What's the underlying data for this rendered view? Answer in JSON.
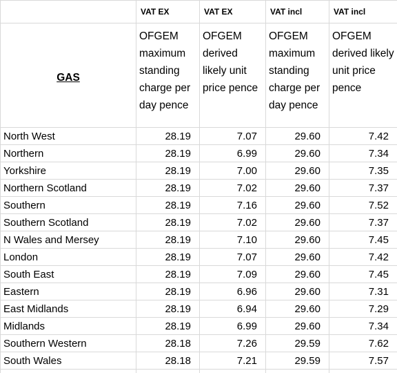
{
  "corner": "GAS",
  "columns": [
    {
      "vat": "VAT EX",
      "heading": "OFGEM maximum standing charge per day pence"
    },
    {
      "vat": "VAT EX",
      "heading": "OFGEM derived likely unit price pence"
    },
    {
      "vat": "VAT incl",
      "heading": "OFGEM maximum standing charge per day pence"
    },
    {
      "vat": "VAT incl",
      "heading": "OFGEM derived likely unit price pence"
    }
  ],
  "rows": [
    [
      "North West",
      "28.19",
      "7.07",
      "29.60",
      "7.42"
    ],
    [
      "Northern",
      "28.19",
      "6.99",
      "29.60",
      "7.34"
    ],
    [
      "Yorkshire",
      "28.19",
      "7.00",
      "29.60",
      "7.35"
    ],
    [
      "Northern Scotland",
      "28.19",
      "7.02",
      "29.60",
      "7.37"
    ],
    [
      "Southern",
      "28.19",
      "7.16",
      "29.60",
      "7.52"
    ],
    [
      "Southern Scotland",
      "28.19",
      "7.02",
      "29.60",
      "7.37"
    ],
    [
      "N Wales and Mersey",
      "28.19",
      "7.10",
      "29.60",
      "7.45"
    ],
    [
      "London",
      "28.19",
      "7.07",
      "29.60",
      "7.42"
    ],
    [
      "South East",
      "28.19",
      "7.09",
      "29.60",
      "7.45"
    ],
    [
      "Eastern",
      "28.19",
      "6.96",
      "29.60",
      "7.31"
    ],
    [
      "East Midlands",
      "28.19",
      "6.94",
      "29.60",
      "7.29"
    ],
    [
      "Midlands",
      "28.19",
      "6.99",
      "29.60",
      "7.34"
    ],
    [
      "Southern Western",
      "28.18",
      "7.26",
      "29.59",
      "7.62"
    ],
    [
      "South Wales",
      "28.18",
      "7.21",
      "29.59",
      "7.57"
    ]
  ]
}
